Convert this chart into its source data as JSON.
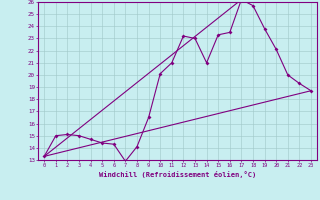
{
  "xlabel": "Windchill (Refroidissement éolien,°C)",
  "background_color": "#c8eef0",
  "line_color": "#800080",
  "x_min": 0,
  "x_max": 23,
  "y_min": 13,
  "y_max": 26,
  "line1_x": [
    0,
    1,
    2,
    3,
    4,
    5,
    6,
    7,
    8,
    9,
    10,
    11,
    12,
    13,
    14,
    15,
    16,
    17,
    18,
    19,
    20,
    21,
    22,
    23
  ],
  "line1_y": [
    13.3,
    15.0,
    15.1,
    15.0,
    14.7,
    14.4,
    14.3,
    12.9,
    14.1,
    16.5,
    20.1,
    21.0,
    23.2,
    23.0,
    21.0,
    23.3,
    23.5,
    26.2,
    25.7,
    23.8,
    22.1,
    20.0,
    19.3,
    18.7
  ],
  "line2_x": [
    0,
    23
  ],
  "line2_y": [
    13.3,
    18.7
  ],
  "line3_x": [
    0,
    17
  ],
  "line3_y": [
    13.3,
    26.2
  ]
}
